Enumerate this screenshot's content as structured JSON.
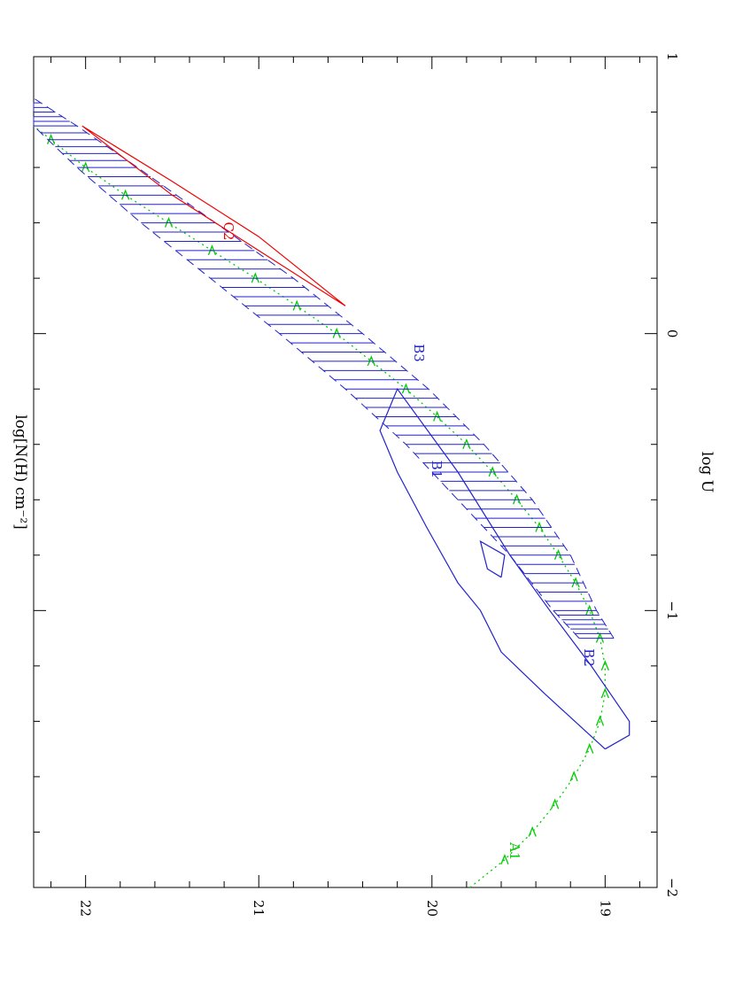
{
  "chart_data": {
    "type": "line",
    "xlabel": "log U",
    "ylabel": "log[N(H) cm⁻²]",
    "xlim": [
      -2,
      1
    ],
    "ylim": [
      18.7,
      22.3
    ],
    "x_ticks": [
      "−2",
      "−1",
      "0",
      "1"
    ],
    "y_ticks": [
      "19",
      "20",
      "21",
      "22"
    ],
    "grid": false,
    "annotations": [
      {
        "text": "A1",
        "x": -1.87,
        "y": 19.55,
        "color": "#00cc00"
      },
      {
        "text": "B1",
        "x": -0.49,
        "y": 20.0,
        "color": "#2222cc"
      },
      {
        "text": "B2",
        "x": -1.17,
        "y": 19.12,
        "color": "#2222cc"
      },
      {
        "text": "B3",
        "x": -0.07,
        "y": 20.1,
        "color": "#2222cc"
      },
      {
        "text": "C2",
        "x": 0.37,
        "y": 21.2,
        "color": "#ee0000"
      }
    ],
    "series": [
      {
        "color": "#00cc00",
        "style": "dotted-with-arrows",
        "x": [
          -2.0,
          -1.9,
          -1.8,
          -1.7,
          -1.6,
          -1.5,
          -1.4,
          -1.3,
          -1.2,
          -1.1,
          -1.0,
          -0.9,
          -0.8,
          -0.7,
          -0.6,
          -0.5,
          -0.4,
          -0.3,
          -0.2,
          -0.1,
          0.0,
          0.1,
          0.2,
          0.3,
          0.4,
          0.5,
          0.6,
          0.7,
          0.75
        ],
        "y": [
          19.78,
          19.58,
          19.42,
          19.29,
          19.18,
          19.09,
          19.03,
          19.0,
          19.0,
          19.03,
          19.09,
          19.17,
          19.27,
          19.38,
          19.51,
          19.65,
          19.8,
          19.97,
          20.15,
          20.35,
          20.55,
          20.78,
          21.02,
          21.27,
          21.52,
          21.77,
          22.0,
          22.2,
          22.3
        ]
      },
      {
        "color": "#2222cc",
        "style": "dashed-hatched-band",
        "x": [
          -1.1,
          -1.0,
          -0.8,
          -0.6,
          -0.4,
          -0.2,
          0.0,
          0.2,
          0.4,
          0.6,
          0.75,
          0.85
        ],
        "y_lower": [
          19.15,
          19.3,
          19.55,
          19.85,
          20.15,
          20.5,
          20.88,
          21.28,
          21.68,
          22.05,
          22.3,
          22.3
        ],
        "y_upper": [
          18.95,
          19.05,
          19.2,
          19.42,
          19.7,
          20.02,
          20.4,
          20.8,
          21.25,
          21.7,
          22.05,
          22.3
        ]
      },
      {
        "color": "#2222cc",
        "style": "solid-contour",
        "x": [
          -1.5,
          -1.3,
          -1.15,
          -1.0,
          -0.9,
          -0.7,
          -0.5,
          -0.35,
          -0.2,
          -0.5,
          -0.8,
          -1.0,
          -1.2,
          -1.4,
          -1.45,
          -1.5
        ],
        "y": [
          19.0,
          19.35,
          19.6,
          19.72,
          19.85,
          20.03,
          20.2,
          20.3,
          20.2,
          19.85,
          19.55,
          19.32,
          19.08,
          18.86,
          18.86,
          19.0
        ]
      },
      {
        "color": "#2222cc",
        "style": "solid-contour",
        "x": [
          -0.88,
          -0.8,
          -0.75,
          -0.85,
          -0.88
        ],
        "y": [
          19.6,
          19.58,
          19.72,
          19.68,
          19.6
        ]
      },
      {
        "color": "#ee0000",
        "style": "solid-contour",
        "x": [
          0.1,
          0.3,
          0.5,
          0.75,
          0.55,
          0.35,
          0.1
        ],
        "y": [
          20.5,
          21.0,
          21.5,
          22.02,
          21.5,
          21.0,
          20.5
        ]
      }
    ]
  }
}
